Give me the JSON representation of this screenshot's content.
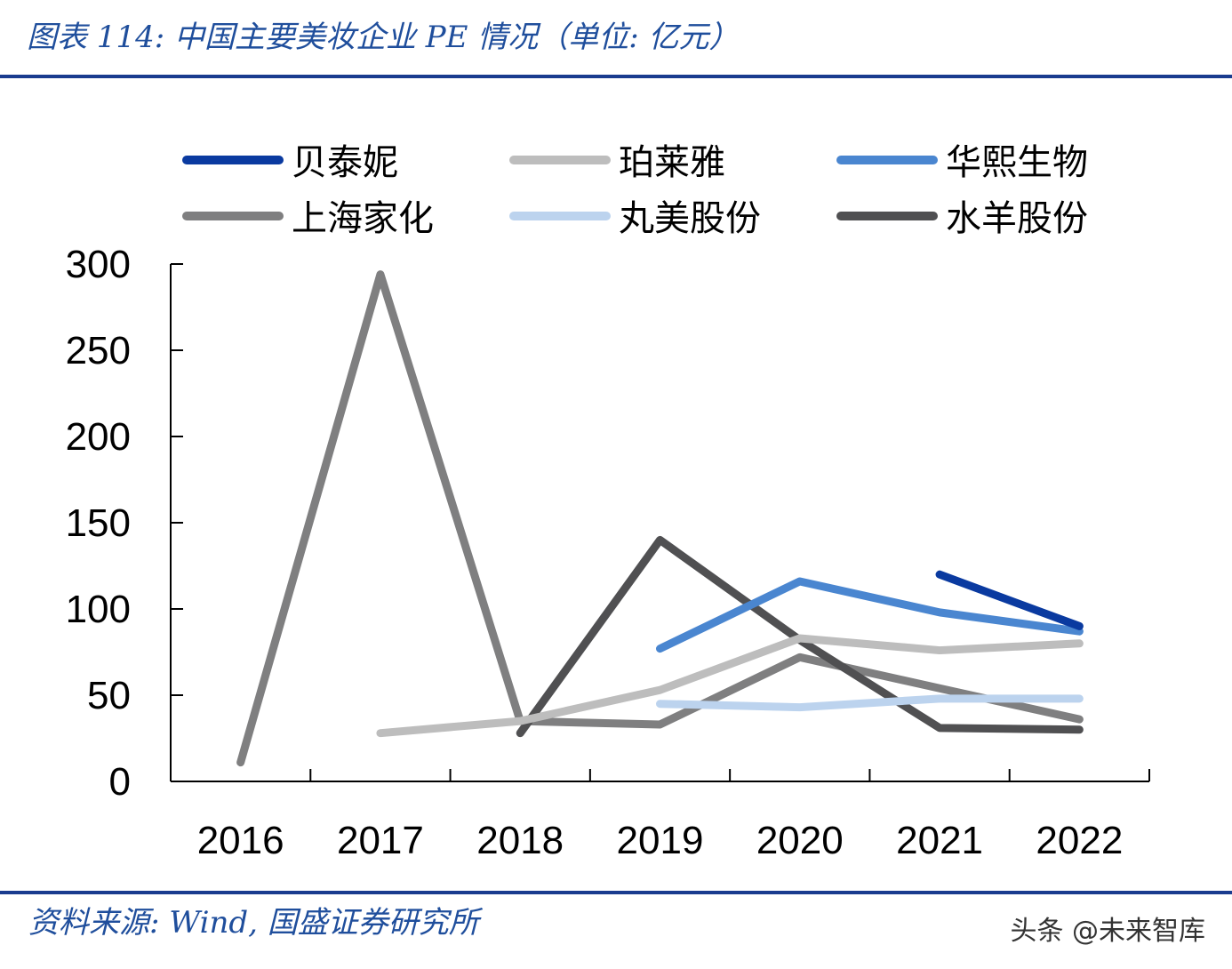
{
  "header": {
    "title": "图表 114:  中国主要美妆企业 PE 情况（单位: 亿元）"
  },
  "footer": {
    "source": "资料来源:  Wind, 国盛证券研究所",
    "watermark": "头条 @未来智库"
  },
  "chart_data": {
    "type": "line",
    "title": "",
    "xlabel": "",
    "ylabel": "",
    "categories": [
      "2016",
      "2017",
      "2018",
      "2019",
      "2020",
      "2021",
      "2022"
    ],
    "ylim": [
      0,
      300
    ],
    "yticks": [
      "0",
      "50",
      "100",
      "150",
      "200",
      "250",
      "300"
    ],
    "grid": false,
    "legend": "top",
    "series": [
      {
        "name": "贝泰妮",
        "color": "#0a3aa0",
        "values": [
          null,
          null,
          null,
          null,
          null,
          120,
          90
        ]
      },
      {
        "name": "珀莱雅",
        "color": "#bdbdbd",
        "values": [
          null,
          28,
          35,
          53,
          83,
          76,
          80
        ]
      },
      {
        "name": "华熙生物",
        "color": "#4a86d0",
        "values": [
          null,
          null,
          null,
          77,
          116,
          98,
          87
        ]
      },
      {
        "name": "上海家化",
        "color": "#7f7f80",
        "values": [
          11,
          294,
          35,
          33,
          72,
          54,
          36
        ]
      },
      {
        "name": "丸美股份",
        "color": "#bcd3ee",
        "values": [
          null,
          null,
          null,
          45,
          43,
          48,
          48
        ]
      },
      {
        "name": "水羊股份",
        "color": "#505052",
        "values": [
          null,
          null,
          28,
          140,
          82,
          31,
          30
        ]
      }
    ]
  }
}
